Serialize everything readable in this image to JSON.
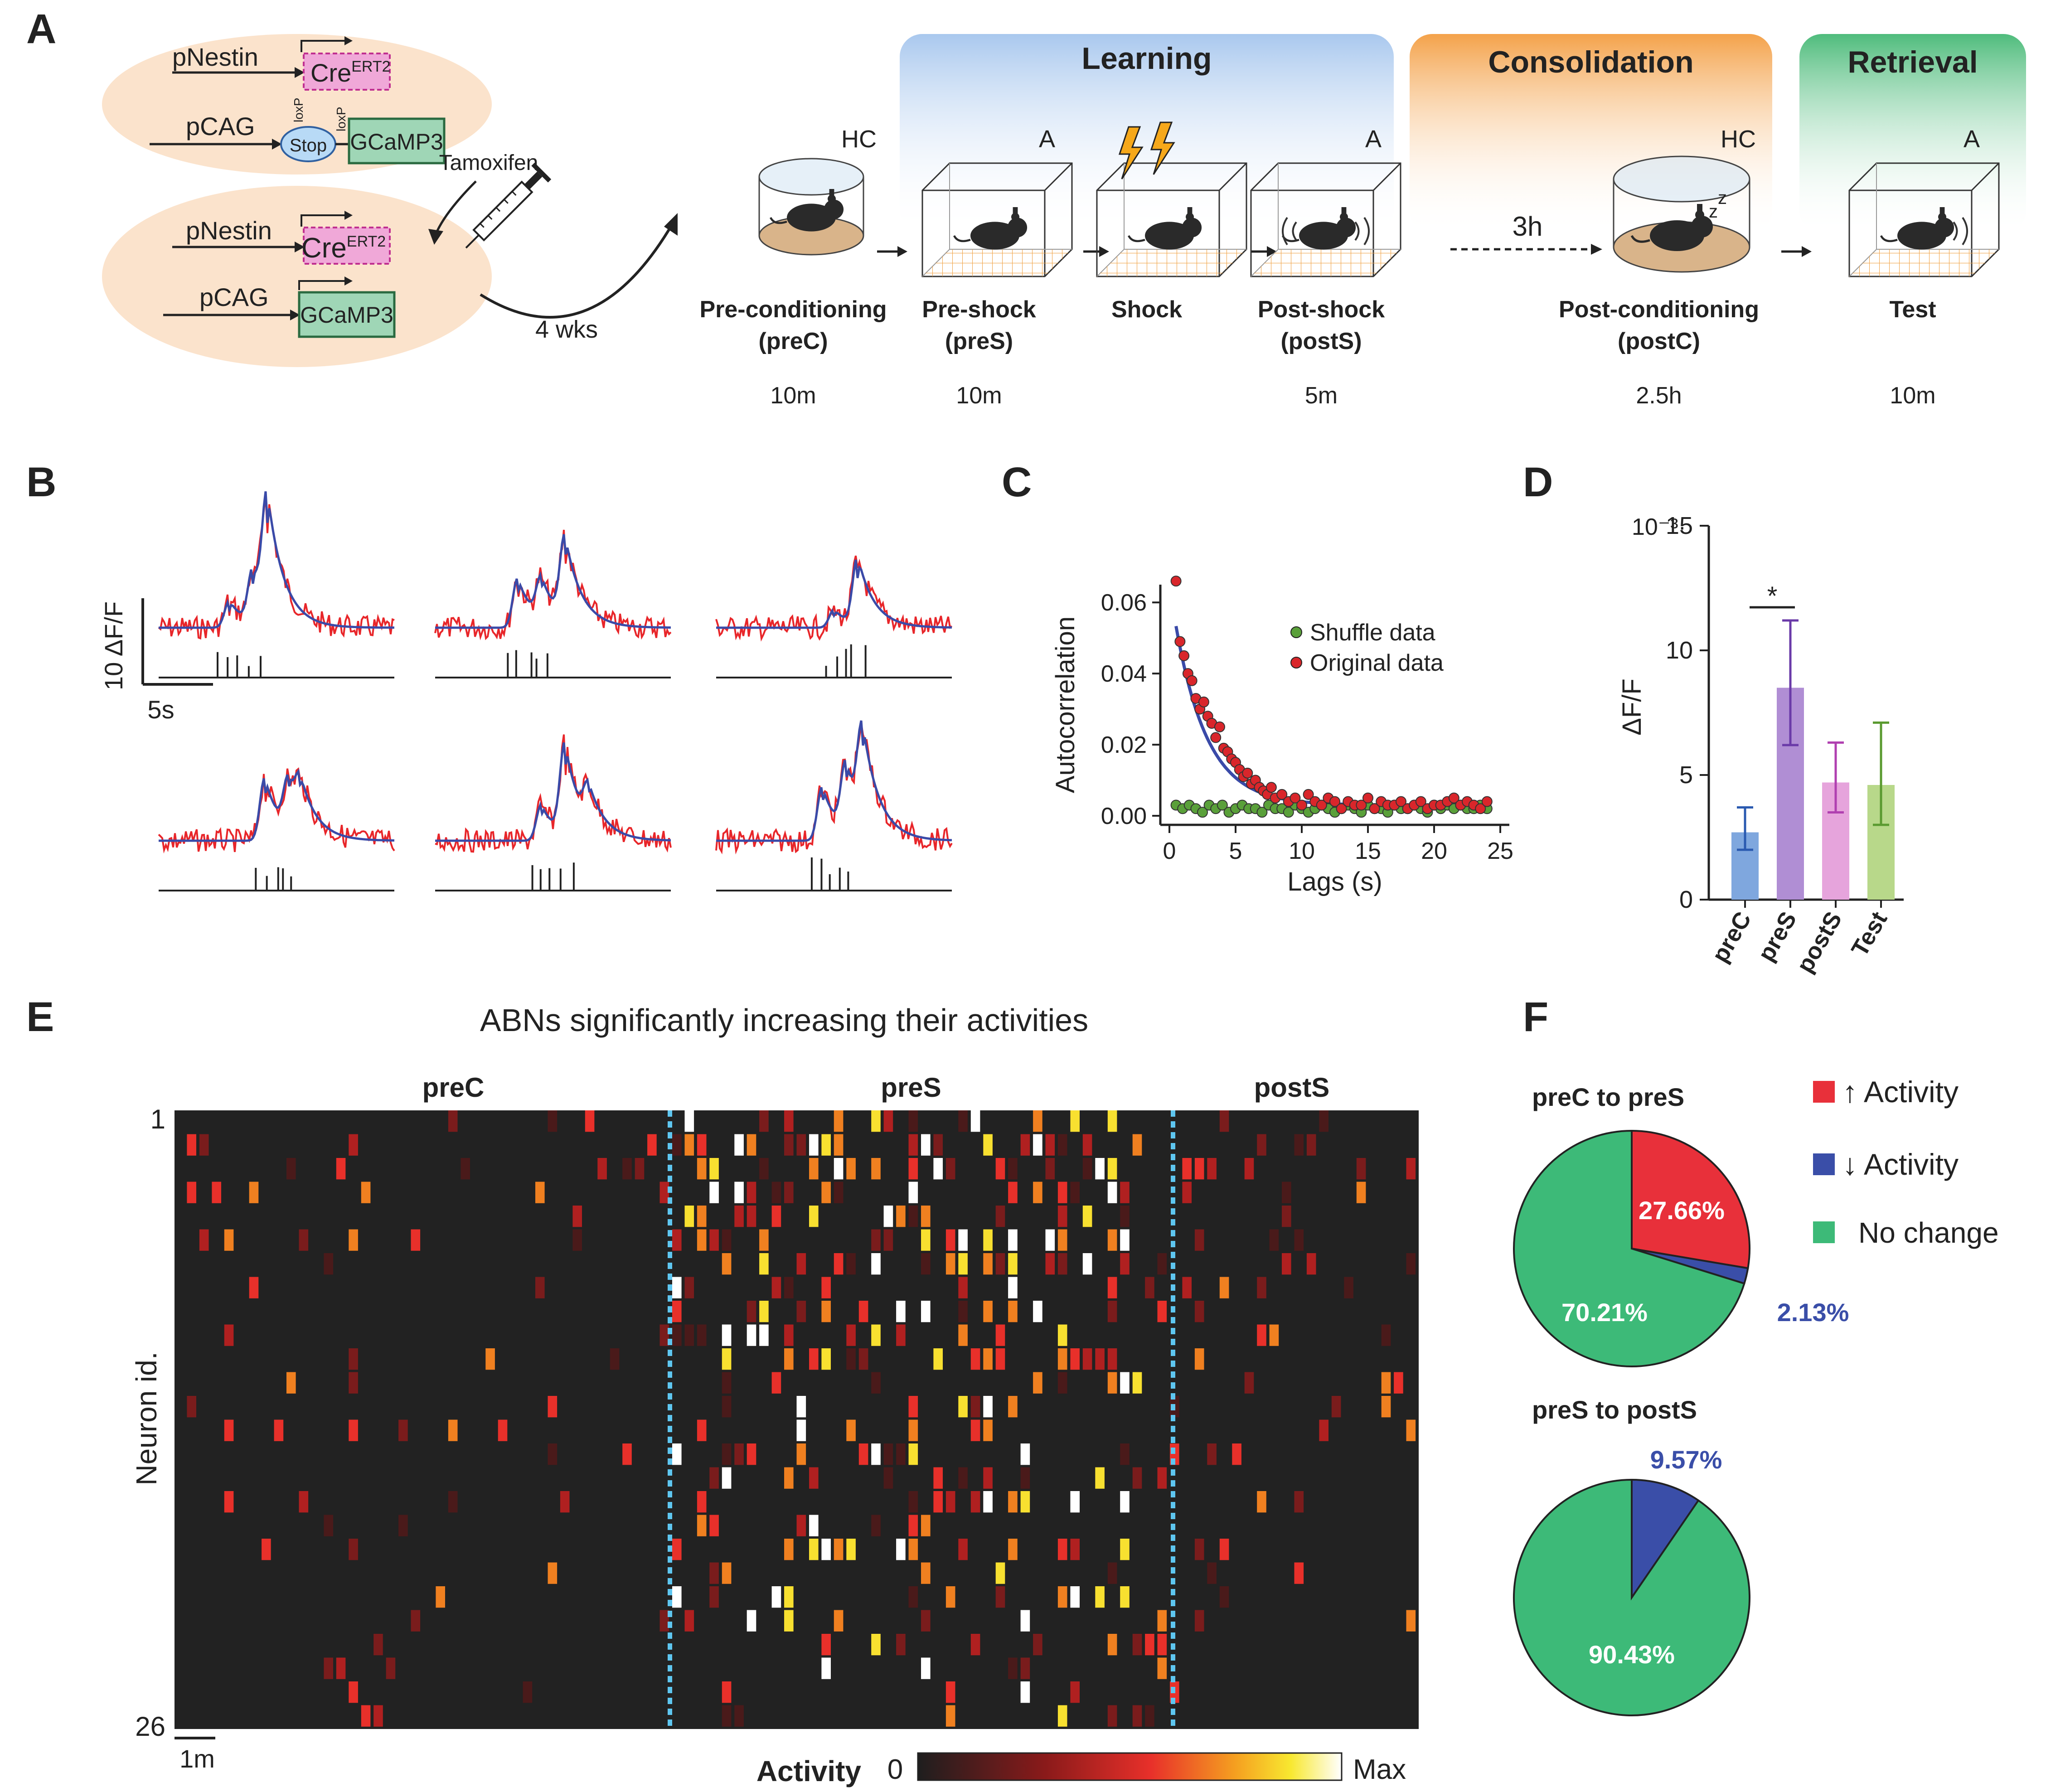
{
  "panels": {
    "A": "A",
    "B": "B",
    "C": "C",
    "D": "D",
    "E": "E",
    "F": "F"
  },
  "panel_a": {
    "construct1": {
      "promoter": "pNestin",
      "gene": "Cre",
      "sup": "ERT2"
    },
    "construct2": {
      "promoter": "pCAG",
      "stop": "Stop",
      "loxp": "loxP",
      "reporter": "GCaMP3"
    },
    "construct3": {
      "promoter": "pNestin",
      "gene": "Cre",
      "sup": "ERT2"
    },
    "construct4": {
      "promoter": "pCAG",
      "reporter": "GCaMP3"
    },
    "tamoxifen": "Tamoxifen",
    "wait": "4 wks",
    "phases": {
      "learning": "Learning",
      "consolidation": "Consolidation",
      "retrieval": "Retrieval"
    },
    "contexts": {
      "hc1": "HC",
      "a1": "A",
      "a2": "A",
      "hc2": "HC",
      "a3": "A"
    },
    "delay": "3h",
    "stages": [
      {
        "name": "Pre-conditioning",
        "abbr": "(preC)",
        "duration": "10m"
      },
      {
        "name": "Pre-shock",
        "abbr": "(preS)",
        "duration": "10m"
      },
      {
        "name": "Shock",
        "abbr": "",
        "duration": ""
      },
      {
        "name": "Post-shock",
        "abbr": "(postS)",
        "duration": "5m"
      },
      {
        "name": "Post-conditioning",
        "abbr": "(postC)",
        "duration": "2.5h"
      },
      {
        "name": "Test",
        "abbr": "",
        "duration": "10m"
      }
    ]
  },
  "panel_b": {
    "scale_y": "10 ΔF/F",
    "scale_x": "5s"
  },
  "chart_data": [
    {
      "id": "C",
      "type": "scatter",
      "xlabel": "Lags (s)",
      "ylabel": "Autocorrelation",
      "xlim": [
        0,
        25
      ],
      "ylim": [
        0,
        0.065
      ],
      "xticks": [
        0,
        5,
        10,
        15,
        20,
        25
      ],
      "yticks": [
        0.0,
        0.02,
        0.04,
        0.06
      ],
      "ytick_labels": [
        "0.00",
        "0.02",
        "0.04",
        "0.06"
      ],
      "legend": [
        "Shuffle data",
        "Original data"
      ],
      "series": [
        {
          "name": "Original data",
          "color": "#d9262b",
          "x": [
            0.5,
            0.8,
            1.1,
            1.4,
            1.7,
            2.0,
            2.3,
            2.6,
            2.9,
            3.2,
            3.5,
            3.8,
            4.1,
            4.4,
            4.7,
            5.0,
            5.3,
            5.6,
            5.9,
            6.2,
            6.5,
            6.8,
            7.1,
            7.4,
            7.7,
            8.0,
            8.5,
            9.0,
            9.5,
            10,
            10.5,
            11,
            11.5,
            12,
            12.5,
            13,
            13.5,
            14,
            14.5,
            15,
            15.5,
            16,
            16.5,
            17,
            17.5,
            18,
            18.5,
            19,
            19.5,
            20,
            20.5,
            21,
            21.5,
            22,
            22.5,
            23,
            23.5,
            24
          ],
          "y": [
            0.066,
            0.049,
            0.045,
            0.04,
            0.038,
            0.033,
            0.03,
            0.032,
            0.028,
            0.026,
            0.022,
            0.025,
            0.019,
            0.018,
            0.016,
            0.015,
            0.013,
            0.011,
            0.012,
            0.009,
            0.01,
            0.008,
            0.007,
            0.006,
            0.008,
            0.005,
            0.006,
            0.004,
            0.005,
            0.003,
            0.006,
            0.004,
            0.003,
            0.005,
            0.004,
            0.002,
            0.004,
            0.003,
            0.003,
            0.005,
            0.002,
            0.004,
            0.003,
            0.003,
            0.004,
            0.002,
            0.003,
            0.004,
            0.002,
            0.003,
            0.003,
            0.004,
            0.005,
            0.003,
            0.004,
            0.003,
            0.002,
            0.004
          ]
        },
        {
          "name": "Shuffle data",
          "color": "#5aa03a",
          "x": [
            0.5,
            1.0,
            1.5,
            2.0,
            2.5,
            3.0,
            3.5,
            4.0,
            4.5,
            5.0,
            5.5,
            6.0,
            6.5,
            7.0,
            7.5,
            8.0,
            8.5,
            9.0,
            9.5,
            10,
            10.5,
            11,
            11.5,
            12,
            12.5,
            13,
            13.5,
            14,
            14.5,
            15,
            15.5,
            16,
            16.5,
            17,
            17.5,
            18,
            18.5,
            19,
            19.5,
            20,
            20.5,
            21,
            21.5,
            22,
            22.5,
            23,
            23.5,
            24
          ],
          "y": [
            0.003,
            0.002,
            0.003,
            0.002,
            0.001,
            0.003,
            0.002,
            0.003,
            0.001,
            0.002,
            0.003,
            0.002,
            0.002,
            0.001,
            0.003,
            0.002,
            0.002,
            0.001,
            0.003,
            0.002,
            0.001,
            0.002,
            0.003,
            0.002,
            0.001,
            0.002,
            0.003,
            0.002,
            0.001,
            0.003,
            0.002,
            0.002,
            0.001,
            0.003,
            0.002,
            0.002,
            0.003,
            0.002,
            0.001,
            0.003,
            0.002,
            0.003,
            0.002,
            0.003,
            0.002,
            0.002,
            0.003,
            0.002
          ]
        },
        {
          "name": "Fit",
          "color": "#3a4aa8",
          "type": "line",
          "amplitude": 0.062,
          "tau": 2.4,
          "offset": 0.003
        }
      ]
    },
    {
      "id": "D",
      "type": "bar",
      "ylabel": "ΔF/F",
      "scale_note": "10⁻³·",
      "categories": [
        "preC",
        "preS",
        "postS",
        "Test"
      ],
      "values": [
        2.7,
        8.5,
        4.7,
        4.6
      ],
      "error_low": [
        2.0,
        6.2,
        3.5,
        3.0
      ],
      "error_high": [
        3.7,
        11.2,
        6.3,
        7.1
      ],
      "colors": [
        "#7fa7de",
        "#b08ed4",
        "#e6a4dc",
        "#b8d88a"
      ],
      "error_colors": [
        "#2a5ab0",
        "#6a3aa8",
        "#b040b0",
        "#5a9a30"
      ],
      "ylim": [
        0,
        15
      ],
      "yticks": [
        0,
        5,
        10,
        15
      ],
      "significance": {
        "between": [
          "preC",
          "preS"
        ],
        "label": "*"
      }
    },
    {
      "id": "E",
      "type": "heatmap",
      "title": "ABNs significantly increasing their activities",
      "sections": [
        "preC",
        "preS",
        "postS"
      ],
      "ylabel": "Neuron id.",
      "y_first": "1",
      "y_last": "26",
      "rows": 26,
      "cols": 100,
      "scale_label": "1m",
      "colorbar_label": "Activity",
      "colorbar_min": "0",
      "colorbar_max": "Max"
    },
    {
      "id": "F1",
      "type": "pie",
      "title": "preC to preS",
      "labels": [
        "↑ Activity",
        "↓ Activity",
        "No change"
      ],
      "values": [
        27.66,
        2.13,
        70.21
      ],
      "value_labels": [
        "27.66%",
        "2.13%",
        "70.21%"
      ],
      "colors": [
        "#e8303a",
        "#3a4ea8",
        "#3dba78"
      ]
    },
    {
      "id": "F2",
      "type": "pie",
      "title": "preS to postS",
      "labels": [
        "↓ Activity",
        "No change"
      ],
      "values": [
        9.57,
        90.43
      ],
      "value_labels": [
        "9.57%",
        "90.43%"
      ],
      "colors": [
        "#3a4ea8",
        "#3dba78"
      ]
    }
  ],
  "legend_f": [
    {
      "arrow": "↑",
      "text": "Activity",
      "color": "#e8303a"
    },
    {
      "arrow": "↓",
      "text": "Activity",
      "color": "#3a4ea8"
    },
    {
      "arrow": "",
      "text": "No change",
      "color": "#3dba78"
    }
  ]
}
